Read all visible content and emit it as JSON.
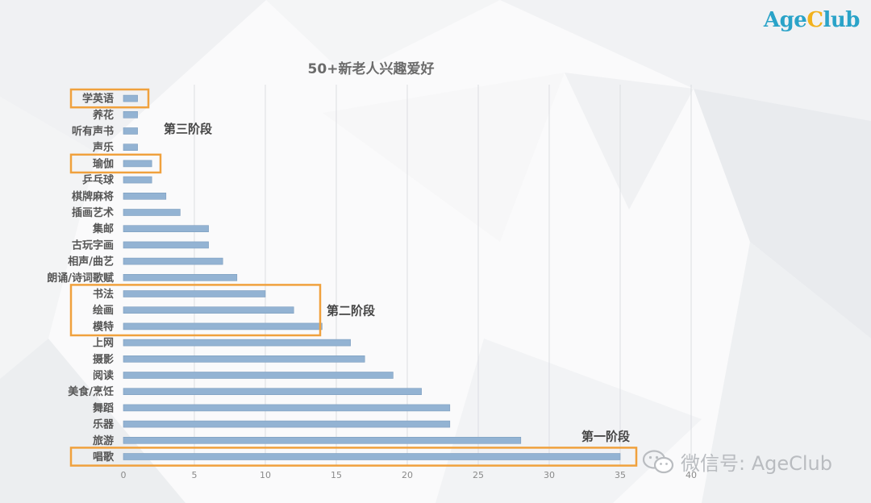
{
  "brand": {
    "part1": "Age",
    "part2": "C",
    "part3": "lub"
  },
  "watermark": {
    "text": "微信号: AgeClub"
  },
  "icons": {
    "watermark": "wechat-icon"
  },
  "colors": {
    "bar": "#93b3d3",
    "bar_edge": "#7c9dbf",
    "highlight": "#f0a13d",
    "logo": "#2aa3c8",
    "logo_accent": "#f2b21d"
  },
  "chart_data": {
    "type": "bar",
    "orientation": "horizontal",
    "title": "50+新老人兴趣爱好",
    "categories": [
      "学英语",
      "养花",
      "听有声书",
      "声乐",
      "瑜伽",
      "乒乓球",
      "棋牌麻将",
      "插画艺术",
      "集邮",
      "古玩字画",
      "相声/曲艺",
      "朗诵/诗词歌赋",
      "书法",
      "绘画",
      "模特",
      "上网",
      "摄影",
      "阅读",
      "美食/烹饪",
      "舞蹈",
      "乐器",
      "旅游",
      "唱歌"
    ],
    "values": [
      1,
      1,
      1,
      1,
      2,
      2,
      3,
      4,
      6,
      6,
      7,
      8,
      10,
      12,
      14,
      16,
      17,
      19,
      21,
      23,
      23,
      28,
      35
    ],
    "xlim": [
      0,
      40
    ],
    "xticks": [
      0,
      5,
      10,
      15,
      20,
      25,
      30,
      35,
      40
    ],
    "grid": true,
    "annotations": [
      {
        "text": "第三阶段",
        "categories": [
          "学英语"
        ],
        "secondary": [
          "瑜伽"
        ]
      },
      {
        "text": "第二阶段",
        "categories": [
          "书法",
          "绘画",
          "模特"
        ]
      },
      {
        "text": "第一阶段",
        "categories": [
          "唱歌"
        ]
      }
    ]
  }
}
